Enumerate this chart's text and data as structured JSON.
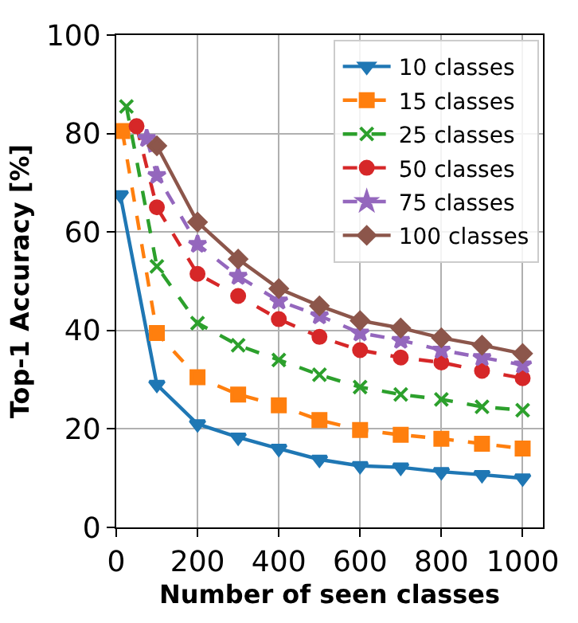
{
  "chart_data": {
    "type": "line",
    "xlabel": "Number of seen classes",
    "ylabel": "Top-1 Accuracy [%]",
    "xlim": [
      0,
      1050
    ],
    "xticks": [
      0,
      200,
      400,
      600,
      800,
      1000
    ],
    "ylim": [
      0,
      100
    ],
    "yticks": [
      0,
      20,
      40,
      60,
      80,
      100
    ],
    "grid": true,
    "legend": "top right",
    "series": [
      {
        "name": "10 classes",
        "color": "#1f77b4",
        "marker": "triangle",
        "line_style": "solid",
        "x": [
          10,
          100,
          200,
          300,
          400,
          500,
          600,
          700,
          800,
          900,
          1000
        ],
        "values": [
          67.5,
          29,
          21,
          18.3,
          16,
          13.8,
          12.5,
          12.2,
          11.3,
          10.7,
          10.0
        ]
      },
      {
        "name": "15 classes",
        "color": "#ff7f0e",
        "marker": "square",
        "line_style": "dashed",
        "x": [
          15,
          100,
          200,
          300,
          400,
          500,
          600,
          700,
          800,
          900,
          1000
        ],
        "values": [
          80.5,
          39.5,
          30.5,
          27,
          24.8,
          21.8,
          19.8,
          18.8,
          18,
          17,
          16
        ]
      },
      {
        "name": "25 classes",
        "color": "#2ca02c",
        "marker": "cross",
        "line_style": "dashed",
        "x": [
          25,
          100,
          200,
          300,
          400,
          500,
          600,
          700,
          800,
          900,
          1000
        ],
        "values": [
          85.5,
          53,
          41.5,
          37,
          34,
          31,
          28.5,
          27,
          26,
          24.5,
          23.8
        ]
      },
      {
        "name": "50 classes",
        "color": "#d62728",
        "marker": "circle",
        "line_style": "dashed",
        "x": [
          50,
          100,
          200,
          300,
          400,
          500,
          600,
          700,
          800,
          900,
          1000
        ],
        "values": [
          81.5,
          65,
          51.5,
          47,
          42.3,
          38.7,
          36,
          34.5,
          33.5,
          31.8,
          30.3
        ]
      },
      {
        "name": "75 classes",
        "color": "#9467bd",
        "marker": "star",
        "line_style": "dashed",
        "x": [
          75,
          100,
          200,
          300,
          400,
          500,
          600,
          700,
          800,
          900,
          1000
        ],
        "values": [
          79,
          71.5,
          57.5,
          51,
          46,
          43,
          39.5,
          38,
          36,
          34.5,
          33
        ]
      },
      {
        "name": "100 classes",
        "color": "#8c564b",
        "marker": "diamond",
        "line_style": "solid",
        "x": [
          100,
          200,
          300,
          400,
          500,
          600,
          700,
          800,
          900,
          1000
        ],
        "values": [
          77.5,
          62,
          54.5,
          48.5,
          45,
          42,
          40.5,
          38.5,
          37,
          35.3
        ]
      }
    ]
  }
}
